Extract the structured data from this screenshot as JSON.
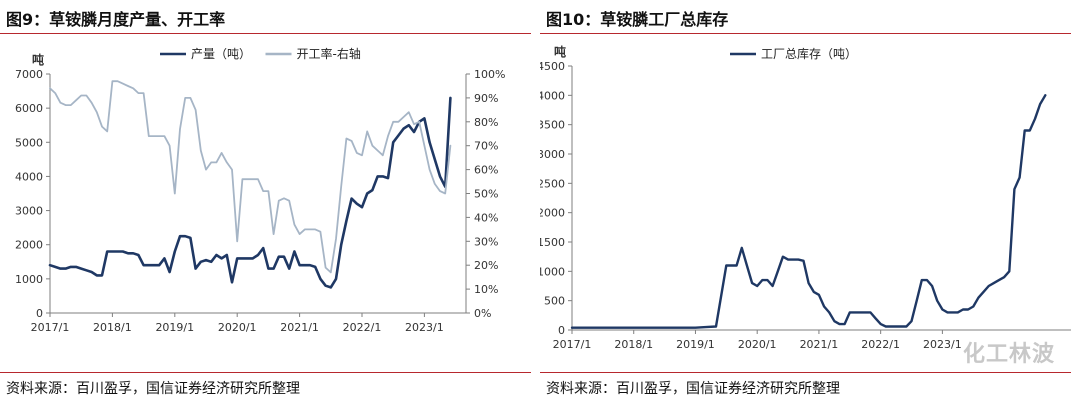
{
  "figures": {
    "left": {
      "title": "图9：草铵膦月度产量、开工率",
      "source": "资料来源：百川盈孚，国信证券经济研究所整理"
    },
    "right": {
      "title": "图10：草铵膦工厂总库存",
      "source": "资料来源：百川盈孚，国信证券经济研究所整理"
    }
  },
  "watermark": "化工林波",
  "colors": {
    "primary": "#1f3864",
    "secondary": "#a6b5c6",
    "axis": "#7f7f7f",
    "rule": "#b7282e"
  },
  "chart_data": [
    {
      "type": "line",
      "title": "图9：草铵膦月度产量、开工率",
      "ylabel": "吨",
      "ylim": [
        0,
        7000
      ],
      "y_ticks": [
        "0",
        "1000",
        "2000",
        "3000",
        "4000",
        "5000",
        "6000",
        "7000"
      ],
      "y2lim": [
        0,
        100
      ],
      "y2_ticks": [
        "0%",
        "10%",
        "20%",
        "30%",
        "40%",
        "50%",
        "60%",
        "70%",
        "80%",
        "90%",
        "100%"
      ],
      "x_ticks": [
        "2017/1",
        "2018/1",
        "2019/1",
        "2020/1",
        "2021/1",
        "2022/1",
        "2023/1"
      ],
      "x_start": "2017/1",
      "series": [
        {
          "name": "产量（吨）",
          "axis": "left",
          "color": "#1f3864",
          "width": 2.6,
          "values": [
            1400,
            1350,
            1300,
            1300,
            1350,
            1350,
            1300,
            1250,
            1200,
            1100,
            1100,
            1800,
            1800,
            1800,
            1800,
            1750,
            1750,
            1700,
            1400,
            1400,
            1400,
            1400,
            1600,
            1200,
            1800,
            2250,
            2250,
            2200,
            1300,
            1500,
            1550,
            1500,
            1700,
            1600,
            1700,
            900,
            1600,
            1600,
            1600,
            1600,
            1700,
            1900,
            1300,
            1300,
            1650,
            1650,
            1300,
            1800,
            1400,
            1400,
            1400,
            1350,
            1000,
            800,
            750,
            1000,
            2000,
            2700,
            3350,
            3200,
            3100,
            3500,
            3600,
            4000,
            4000,
            3950,
            5000,
            5200,
            5400,
            5500,
            5300,
            5600,
            5700,
            5000,
            4500,
            4000,
            3700,
            6300
          ]
        },
        {
          "name": "开工率-右轴",
          "axis": "right",
          "color": "#a6b5c6",
          "width": 1.8,
          "values": [
            94,
            92,
            88,
            87,
            87,
            89,
            91,
            91,
            88,
            84,
            78,
            76,
            97,
            97,
            96,
            95,
            94,
            92,
            92,
            74,
            74,
            74,
            74,
            70,
            50,
            77,
            90,
            90,
            85,
            68,
            60,
            63,
            63,
            67,
            63,
            60,
            30,
            56,
            56,
            56,
            56,
            51,
            51,
            33,
            47,
            48,
            47,
            37,
            33,
            35,
            35,
            35,
            34,
            19,
            17,
            31,
            53,
            73,
            72,
            67,
            66,
            76,
            70,
            68,
            66,
            74,
            80,
            80,
            82,
            84,
            79,
            80,
            70,
            60,
            54,
            51,
            50,
            70
          ]
        }
      ]
    },
    {
      "type": "line",
      "title": "图10：草铵膦工厂总库存",
      "ylabel": "吨",
      "ylim": [
        0,
        4500
      ],
      "y_ticks": [
        "0",
        "500",
        "1000",
        "1500",
        "2000",
        "2500",
        "3000",
        "3500",
        "4000",
        "4500"
      ],
      "x_ticks": [
        "2017/1",
        "2018/1",
        "2019/1",
        "2020/1",
        "2021/1",
        "2022/1",
        "2023/1"
      ],
      "x_start": "2017/1",
      "series": [
        {
          "name": "工厂总库存（吨）",
          "color": "#1f3864",
          "width": 2.4,
          "points": [
            [
              0,
              40
            ],
            [
              4,
              40
            ],
            [
              8,
              40
            ],
            [
              12,
              40
            ],
            [
              16,
              40
            ],
            [
              20,
              40
            ],
            [
              24,
              40
            ],
            [
              26,
              50
            ],
            [
              28,
              60
            ],
            [
              30,
              1100
            ],
            [
              32,
              1100
            ],
            [
              33,
              1400
            ],
            [
              34,
              1100
            ],
            [
              35,
              800
            ],
            [
              36,
              750
            ],
            [
              37,
              850
            ],
            [
              38,
              850
            ],
            [
              39,
              750
            ],
            [
              40,
              1000
            ],
            [
              41,
              1250
            ],
            [
              42,
              1200
            ],
            [
              43,
              1200
            ],
            [
              44,
              1200
            ],
            [
              45,
              1180
            ],
            [
              46,
              800
            ],
            [
              47,
              650
            ],
            [
              48,
              600
            ],
            [
              49,
              400
            ],
            [
              50,
              300
            ],
            [
              51,
              150
            ],
            [
              52,
              100
            ],
            [
              53,
              100
            ],
            [
              54,
              300
            ],
            [
              55,
              300
            ],
            [
              56,
              300
            ],
            [
              57,
              300
            ],
            [
              58,
              300
            ],
            [
              59,
              200
            ],
            [
              60,
              100
            ],
            [
              61,
              60
            ],
            [
              62,
              60
            ],
            [
              63,
              60
            ],
            [
              64,
              60
            ],
            [
              65,
              60
            ],
            [
              66,
              150
            ],
            [
              67,
              500
            ],
            [
              68,
              850
            ],
            [
              69,
              850
            ],
            [
              70,
              750
            ],
            [
              71,
              500
            ],
            [
              72,
              350
            ],
            [
              73,
              300
            ],
            [
              74,
              300
            ],
            [
              75,
              300
            ],
            [
              76,
              350
            ],
            [
              77,
              350
            ],
            [
              78,
              400
            ],
            [
              79,
              550
            ],
            [
              80,
              650
            ],
            [
              81,
              750
            ],
            [
              82,
              800
            ],
            [
              83,
              850
            ],
            [
              84,
              900
            ],
            [
              85,
              1000
            ],
            [
              86,
              2400
            ],
            [
              87,
              2600
            ],
            [
              88,
              3400
            ],
            [
              89,
              3400
            ],
            [
              90,
              3600
            ],
            [
              91,
              3850
            ],
            [
              92,
              4000
            ]
          ]
        }
      ]
    }
  ]
}
